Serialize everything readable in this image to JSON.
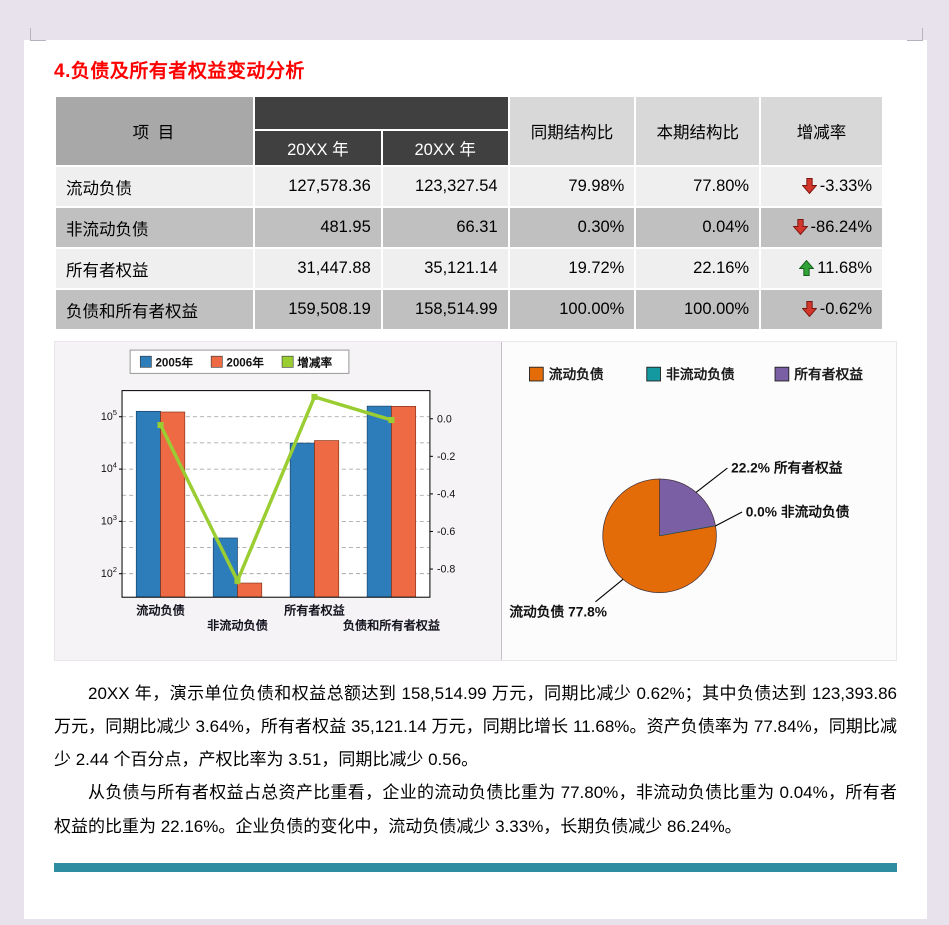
{
  "page": {
    "title": "4.负债及所有者权益变动分析"
  },
  "table": {
    "header": {
      "item": "项  目",
      "year1": "20XX 年",
      "year2": "20XX 年",
      "prev_ratio": "同期结构比",
      "curr_ratio": "本期结构比",
      "change": "增减率"
    },
    "rows": [
      {
        "name": "流动负债",
        "y1": "127,578.36",
        "y2": "123,327.54",
        "prev": "79.98%",
        "curr": "77.80%",
        "change": "-3.33%",
        "dir": "down"
      },
      {
        "name": "非流动负债",
        "y1": "481.95",
        "y2": "66.31",
        "prev": "0.30%",
        "curr": "0.04%",
        "change": "-86.24%",
        "dir": "down"
      },
      {
        "name": "所有者权益",
        "y1": "31,447.88",
        "y2": "35,121.14",
        "prev": "19.72%",
        "curr": "22.16%",
        "change": "11.68%",
        "dir": "up"
      },
      {
        "name": "负债和所有者权益",
        "y1": "159,508.19",
        "y2": "158,514.99",
        "prev": "100.00%",
        "curr": "100.00%",
        "change": "-0.62%",
        "dir": "down"
      }
    ]
  },
  "chart_data": [
    {
      "type": "bar",
      "categories": [
        "流动负债",
        "非流动负债",
        "所有者权益",
        "负债和所有者权益"
      ],
      "series": [
        {
          "name": "2005年",
          "color": "#2d7dbb",
          "values": [
            127578.36,
            481.95,
            31447.88,
            159508.19
          ]
        },
        {
          "name": "2006年",
          "color": "#ed6a45",
          "values": [
            123327.54,
            66.31,
            35121.14,
            158514.99
          ]
        }
      ],
      "line_series": {
        "name": "增减率",
        "color": "#9acd32",
        "values": [
          -0.0333,
          -0.8624,
          0.1168,
          -0.0062
        ]
      },
      "y_left": {
        "scale": "log",
        "ticks": [
          "10^2",
          "10^3",
          "10^4",
          "10^5"
        ]
      },
      "y_right": {
        "ticks": [
          0,
          -0.2,
          -0.4,
          -0.6,
          -0.8
        ],
        "max": 0.15,
        "min": -0.95
      },
      "legend_position": "top",
      "grid": true
    },
    {
      "type": "pie",
      "legend": [
        "流动负债",
        "非流动负债",
        "所有者权益"
      ],
      "colors": [
        "#e36c09",
        "#13999f",
        "#7a5fa5"
      ],
      "values": [
        77.8,
        0.0,
        22.2
      ],
      "labels": [
        "流动负债 77.8%",
        "0.0% 非流动负债",
        "22.2% 所有者权益"
      ],
      "legend_position": "top"
    }
  ],
  "paragraphs": [
    "20XX 年，演示单位负债和权益总额达到 158,514.99 万元，同期比减少 0.62%；其中负债达到 123,393.86 万元，同期比减少 3.64%，所有者权益 35,121.14 万元，同期比增长 11.68%。资产负债率为 77.84%，同期比减少 2.44 个百分点，产权比率为 3.51，同期比减少 0.56。",
    "从负债与所有者权益占总资产比重看，企业的流动负债比重为 77.80%，非流动负债比重为 0.04%，所有者权益的比重为 22.16%。企业负债的变化中，流动负债减少 3.33%，长期负债减少 86.24%。"
  ]
}
